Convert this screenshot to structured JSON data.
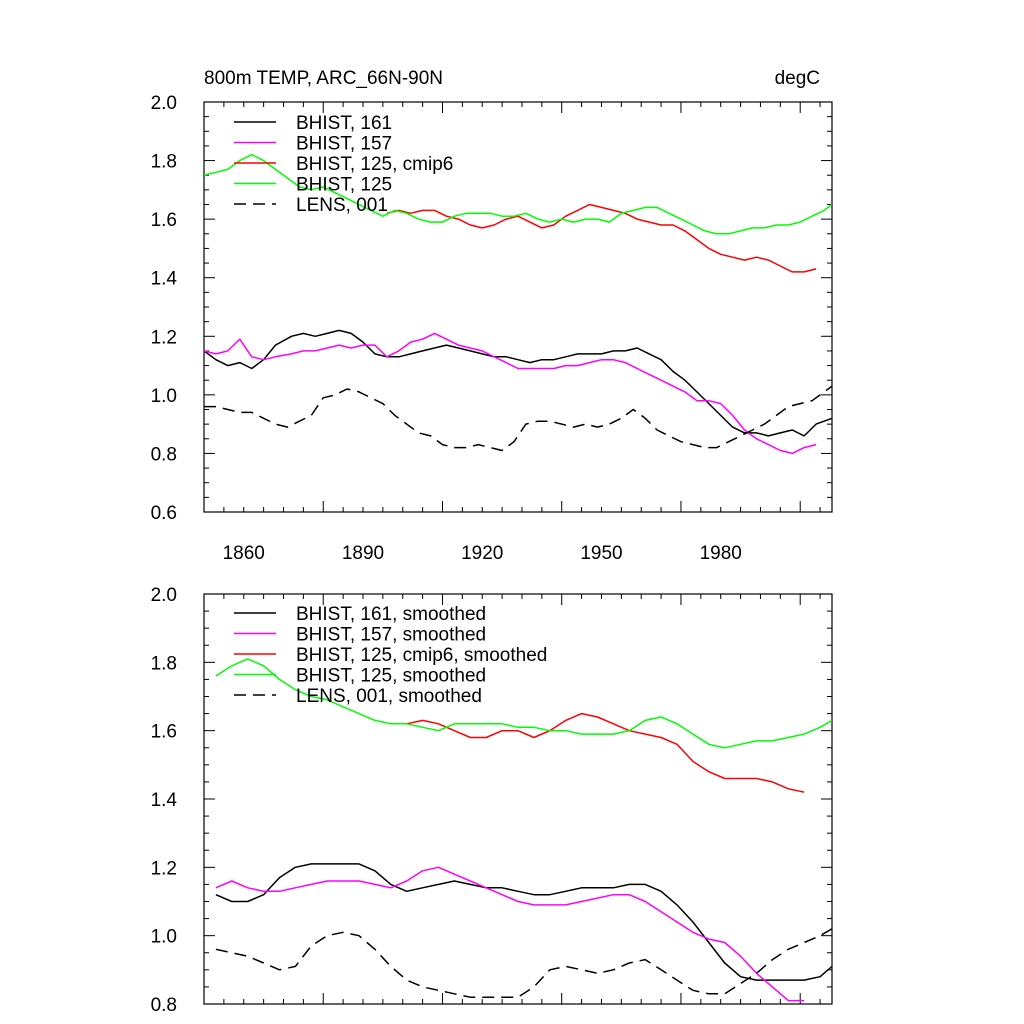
{
  "figure": {
    "title_left": "800m TEMP, ARC_66N-90N",
    "title_right": "degC"
  },
  "chart_data": [
    {
      "type": "line",
      "title": "800m TEMP, ARC_66N-90N",
      "units": "degC",
      "xlabel": "",
      "ylabel": "",
      "xlim": [
        1850,
        2008
      ],
      "ylim": [
        0.6,
        2.0
      ],
      "xticks": [
        1860,
        1890,
        1920,
        1950,
        1980
      ],
      "xtick_labels": [
        "1860",
        "1890",
        "1920",
        "1950",
        "1980"
      ],
      "yticks": [
        0.6,
        0.8,
        1.0,
        1.2,
        1.4,
        1.6,
        1.8,
        2.0
      ],
      "ytick_labels": [
        "0.6",
        "0.8",
        "1.0",
        "1.2",
        "1.4",
        "1.6",
        "1.8",
        "2.0"
      ],
      "grid": false,
      "legend_position": "top-left",
      "series": [
        {
          "name": "BHIST, 161",
          "color": "#000000",
          "dash": "solid",
          "x": [
            1850,
            1853,
            1856,
            1859,
            1862,
            1865,
            1868,
            1872,
            1875,
            1878,
            1881,
            1884,
            1887,
            1890,
            1893,
            1896,
            1899,
            1902,
            1905,
            1908,
            1911,
            1914,
            1917,
            1920,
            1923,
            1926,
            1929,
            1932,
            1935,
            1938,
            1941,
            1944,
            1947,
            1950,
            1953,
            1956,
            1959,
            1962,
            1965,
            1968,
            1971,
            1974,
            1977,
            1980,
            1983,
            1986,
            1989,
            1992,
            1995,
            1998,
            2001,
            2004,
            2008
          ],
          "y": [
            1.15,
            1.12,
            1.1,
            1.11,
            1.09,
            1.12,
            1.17,
            1.2,
            1.21,
            1.2,
            1.21,
            1.22,
            1.21,
            1.18,
            1.14,
            1.13,
            1.13,
            1.14,
            1.15,
            1.16,
            1.17,
            1.16,
            1.15,
            1.14,
            1.13,
            1.13,
            1.12,
            1.11,
            1.12,
            1.12,
            1.13,
            1.14,
            1.14,
            1.14,
            1.15,
            1.15,
            1.16,
            1.14,
            1.12,
            1.08,
            1.05,
            1.01,
            0.97,
            0.93,
            0.89,
            0.87,
            0.87,
            0.86,
            0.87,
            0.88,
            0.86,
            0.9,
            0.92
          ]
        },
        {
          "name": "BHIST, 157",
          "color": "#ff00ff",
          "dash": "solid",
          "x": [
            1850,
            1853,
            1856,
            1859,
            1862,
            1865,
            1868,
            1872,
            1875,
            1878,
            1881,
            1884,
            1887,
            1890,
            1893,
            1896,
            1899,
            1902,
            1905,
            1908,
            1911,
            1914,
            1917,
            1920,
            1923,
            1926,
            1929,
            1932,
            1935,
            1938,
            1941,
            1944,
            1947,
            1950,
            1953,
            1956,
            1959,
            1962,
            1965,
            1968,
            1971,
            1974,
            1977,
            1980,
            1983,
            1986,
            1989,
            1992,
            1995,
            1998,
            2001,
            2004
          ],
          "y": [
            1.15,
            1.14,
            1.15,
            1.19,
            1.13,
            1.12,
            1.13,
            1.14,
            1.15,
            1.15,
            1.16,
            1.17,
            1.16,
            1.17,
            1.17,
            1.13,
            1.15,
            1.18,
            1.19,
            1.21,
            1.19,
            1.17,
            1.16,
            1.15,
            1.13,
            1.11,
            1.09,
            1.09,
            1.09,
            1.09,
            1.1,
            1.1,
            1.11,
            1.12,
            1.12,
            1.11,
            1.09,
            1.07,
            1.05,
            1.03,
            1.01,
            0.98,
            0.98,
            0.97,
            0.93,
            0.88,
            0.85,
            0.83,
            0.81,
            0.8,
            0.82,
            0.83
          ]
        },
        {
          "name": "BHIST, 125, cmip6",
          "color": "#ff0000",
          "dash": "solid",
          "x": [
            1896,
            1899,
            1902,
            1905,
            1908,
            1911,
            1914,
            1917,
            1920,
            1923,
            1926,
            1929,
            1932,
            1935,
            1938,
            1941,
            1944,
            1947,
            1950,
            1953,
            1956,
            1959,
            1962,
            1965,
            1968,
            1971,
            1974,
            1977,
            1980,
            1983,
            1986,
            1989,
            1992,
            1995,
            1998,
            2001,
            2004
          ],
          "y": [
            1.62,
            1.63,
            1.62,
            1.63,
            1.63,
            1.61,
            1.6,
            1.58,
            1.57,
            1.58,
            1.6,
            1.61,
            1.59,
            1.57,
            1.58,
            1.61,
            1.63,
            1.65,
            1.64,
            1.63,
            1.62,
            1.6,
            1.59,
            1.58,
            1.58,
            1.56,
            1.53,
            1.5,
            1.48,
            1.47,
            1.46,
            1.47,
            1.46,
            1.44,
            1.42,
            1.42,
            1.43
          ]
        },
        {
          "name": "BHIST, 125",
          "color": "#00ff00",
          "dash": "solid",
          "x": [
            1850,
            1853,
            1856,
            1859,
            1862,
            1865,
            1868,
            1871,
            1874,
            1877,
            1880,
            1883,
            1886,
            1889,
            1892,
            1895,
            1898,
            1901,
            1904,
            1907,
            1910,
            1913,
            1916,
            1919,
            1922,
            1925,
            1928,
            1931,
            1934,
            1937,
            1940,
            1943,
            1946,
            1949,
            1952,
            1955,
            1958,
            1961,
            1964,
            1967,
            1970,
            1973,
            1976,
            1979,
            1982,
            1985,
            1988,
            1991,
            1994,
            1997,
            2000,
            2003,
            2006,
            2008
          ],
          "y": [
            1.75,
            1.76,
            1.77,
            1.8,
            1.82,
            1.8,
            1.77,
            1.74,
            1.71,
            1.7,
            1.71,
            1.69,
            1.67,
            1.65,
            1.63,
            1.61,
            1.63,
            1.62,
            1.6,
            1.59,
            1.59,
            1.61,
            1.62,
            1.62,
            1.62,
            1.61,
            1.61,
            1.62,
            1.6,
            1.59,
            1.6,
            1.59,
            1.6,
            1.6,
            1.59,
            1.62,
            1.63,
            1.64,
            1.64,
            1.62,
            1.6,
            1.58,
            1.56,
            1.55,
            1.55,
            1.56,
            1.57,
            1.57,
            1.58,
            1.58,
            1.59,
            1.61,
            1.63,
            1.65
          ]
        },
        {
          "name": "LENS, 001",
          "color": "#000000",
          "dash": "dashed",
          "x": [
            1850,
            1853,
            1856,
            1859,
            1862,
            1865,
            1868,
            1871,
            1874,
            1877,
            1880,
            1883,
            1886,
            1889,
            1892,
            1895,
            1898,
            1901,
            1904,
            1907,
            1910,
            1913,
            1916,
            1919,
            1922,
            1925,
            1928,
            1931,
            1934,
            1937,
            1940,
            1943,
            1946,
            1949,
            1952,
            1955,
            1958,
            1961,
            1964,
            1967,
            1970,
            1973,
            1976,
            1979,
            1982,
            1985,
            1988,
            1991,
            1994,
            1997,
            2000,
            2003,
            2006,
            2008
          ],
          "y": [
            0.96,
            0.96,
            0.95,
            0.94,
            0.94,
            0.92,
            0.9,
            0.89,
            0.91,
            0.93,
            0.99,
            1.0,
            1.02,
            1.01,
            0.99,
            0.97,
            0.93,
            0.9,
            0.87,
            0.86,
            0.83,
            0.82,
            0.82,
            0.83,
            0.82,
            0.81,
            0.84,
            0.9,
            0.91,
            0.91,
            0.9,
            0.89,
            0.9,
            0.89,
            0.9,
            0.92,
            0.95,
            0.92,
            0.88,
            0.86,
            0.84,
            0.83,
            0.82,
            0.82,
            0.84,
            0.86,
            0.88,
            0.9,
            0.93,
            0.96,
            0.97,
            0.98,
            1.01,
            1.03
          ]
        }
      ]
    },
    {
      "type": "line",
      "title": "",
      "xlabel": "",
      "ylabel": "",
      "xlim": [
        1850,
        2008
      ],
      "ylim": [
        0.8,
        2.0
      ],
      "xticks": [
        1860,
        1890,
        1920,
        1950,
        1980
      ],
      "yticks": [
        0.8,
        1.0,
        1.2,
        1.4,
        1.6,
        1.8,
        2.0
      ],
      "ytick_labels": [
        "0.8",
        "1.0",
        "1.2",
        "1.4",
        "1.6",
        "1.8",
        "2.0"
      ],
      "grid": false,
      "legend_position": "top-left",
      "series": [
        {
          "name": "BHIST, 161, smoothed",
          "color": "#000000",
          "dash": "solid",
          "x": [
            1853,
            1857,
            1861,
            1865,
            1869,
            1873,
            1877,
            1881,
            1885,
            1889,
            1893,
            1897,
            1901,
            1905,
            1909,
            1913,
            1917,
            1921,
            1925,
            1929,
            1933,
            1937,
            1941,
            1945,
            1949,
            1953,
            1957,
            1961,
            1965,
            1969,
            1973,
            1977,
            1981,
            1985,
            1989,
            1993,
            1997,
            2001,
            2005,
            2008
          ],
          "y": [
            1.12,
            1.1,
            1.1,
            1.12,
            1.17,
            1.2,
            1.21,
            1.21,
            1.21,
            1.21,
            1.19,
            1.15,
            1.13,
            1.14,
            1.15,
            1.16,
            1.15,
            1.14,
            1.14,
            1.13,
            1.12,
            1.12,
            1.13,
            1.14,
            1.14,
            1.14,
            1.15,
            1.15,
            1.13,
            1.09,
            1.04,
            0.98,
            0.92,
            0.88,
            0.87,
            0.87,
            0.87,
            0.87,
            0.88,
            0.91
          ]
        },
        {
          "name": "BHIST, 157, smoothed",
          "color": "#ff00ff",
          "dash": "solid",
          "x": [
            1853,
            1857,
            1861,
            1865,
            1869,
            1873,
            1877,
            1881,
            1885,
            1889,
            1893,
            1897,
            1901,
            1905,
            1909,
            1913,
            1917,
            1921,
            1925,
            1929,
            1933,
            1937,
            1941,
            1945,
            1949,
            1953,
            1957,
            1961,
            1965,
            1969,
            1973,
            1977,
            1981,
            1985,
            1989,
            1993,
            1997,
            2001
          ],
          "y": [
            1.14,
            1.16,
            1.14,
            1.13,
            1.13,
            1.14,
            1.15,
            1.16,
            1.16,
            1.16,
            1.15,
            1.14,
            1.16,
            1.19,
            1.2,
            1.18,
            1.16,
            1.14,
            1.12,
            1.1,
            1.09,
            1.09,
            1.09,
            1.1,
            1.11,
            1.12,
            1.12,
            1.1,
            1.07,
            1.04,
            1.01,
            0.99,
            0.98,
            0.94,
            0.89,
            0.85,
            0.81,
            0.81
          ]
        },
        {
          "name": "BHIST, 125, cmip6, smoothed",
          "color": "#ff0000",
          "dash": "solid",
          "x": [
            1897,
            1901,
            1905,
            1909,
            1913,
            1917,
            1921,
            1925,
            1929,
            1933,
            1937,
            1941,
            1945,
            1949,
            1953,
            1957,
            1961,
            1965,
            1969,
            1973,
            1977,
            1981,
            1985,
            1989,
            1993,
            1997,
            2001
          ],
          "y": [
            1.62,
            1.62,
            1.63,
            1.62,
            1.6,
            1.58,
            1.58,
            1.6,
            1.6,
            1.58,
            1.6,
            1.63,
            1.65,
            1.64,
            1.62,
            1.6,
            1.59,
            1.58,
            1.56,
            1.51,
            1.48,
            1.46,
            1.46,
            1.46,
            1.45,
            1.43,
            1.42
          ]
        },
        {
          "name": "BHIST, 125, smoothed",
          "color": "#00ff00",
          "dash": "solid",
          "x": [
            1853,
            1857,
            1861,
            1865,
            1869,
            1873,
            1877,
            1881,
            1885,
            1889,
            1893,
            1897,
            1901,
            1905,
            1909,
            1913,
            1917,
            1921,
            1925,
            1929,
            1933,
            1937,
            1941,
            1945,
            1949,
            1953,
            1957,
            1961,
            1965,
            1969,
            1973,
            1977,
            1981,
            1985,
            1989,
            1993,
            1997,
            2001,
            2005,
            2008
          ],
          "y": [
            1.76,
            1.79,
            1.81,
            1.79,
            1.75,
            1.72,
            1.7,
            1.69,
            1.67,
            1.65,
            1.63,
            1.62,
            1.62,
            1.61,
            1.6,
            1.62,
            1.62,
            1.62,
            1.62,
            1.61,
            1.61,
            1.6,
            1.6,
            1.59,
            1.59,
            1.59,
            1.6,
            1.63,
            1.64,
            1.62,
            1.59,
            1.56,
            1.55,
            1.56,
            1.57,
            1.57,
            1.58,
            1.59,
            1.61,
            1.63
          ]
        },
        {
          "name": "LENS, 001, smoothed",
          "color": "#000000",
          "dash": "dashed",
          "x": [
            1853,
            1857,
            1861,
            1865,
            1869,
            1873,
            1877,
            1881,
            1885,
            1889,
            1893,
            1897,
            1901,
            1905,
            1909,
            1913,
            1917,
            1921,
            1925,
            1929,
            1933,
            1937,
            1941,
            1945,
            1949,
            1953,
            1957,
            1961,
            1965,
            1969,
            1973,
            1977,
            1981,
            1985,
            1989,
            1993,
            1997,
            2001,
            2005,
            2008
          ],
          "y": [
            0.96,
            0.95,
            0.94,
            0.92,
            0.9,
            0.91,
            0.97,
            1.0,
            1.01,
            1.0,
            0.96,
            0.91,
            0.87,
            0.85,
            0.84,
            0.83,
            0.82,
            0.82,
            0.82,
            0.82,
            0.85,
            0.9,
            0.91,
            0.9,
            0.89,
            0.9,
            0.92,
            0.93,
            0.9,
            0.87,
            0.84,
            0.83,
            0.83,
            0.86,
            0.89,
            0.93,
            0.96,
            0.98,
            1.0,
            1.02
          ]
        }
      ]
    }
  ]
}
